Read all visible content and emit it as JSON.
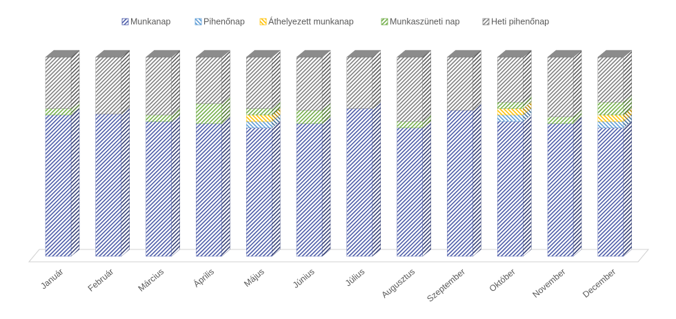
{
  "chart_data": {
    "type": "bar",
    "stacked": "percent",
    "categories": [
      "Január",
      "Február",
      "Március",
      "Április",
      "Május",
      "Június",
      "Július",
      "Augusztus",
      "Szeptember",
      "Október",
      "November",
      "December"
    ],
    "series": [
      {
        "name": "Munkanap",
        "color": "#4a5aa8",
        "values": [
          22,
          20,
          21,
          20,
          20,
          20,
          23,
          20,
          22,
          21,
          20,
          20
        ]
      },
      {
        "name": "Pihenőnap",
        "color": "#5b9bd5",
        "values": [
          0,
          0,
          0,
          0,
          1,
          0,
          0,
          0,
          0,
          1,
          0,
          1
        ]
      },
      {
        "name": "Áthelyezett munkanap",
        "color": "#ffc000",
        "values": [
          0,
          0,
          0,
          0,
          1,
          0,
          0,
          0,
          0,
          1,
          0,
          1
        ]
      },
      {
        "name": "Munkaszüneti nap",
        "color": "#70ad47",
        "values": [
          1,
          0,
          1,
          3,
          1,
          2,
          0,
          1,
          0,
          1,
          1,
          2
        ]
      },
      {
        "name": "Heti pihenőnap",
        "color": "#7f7f7f",
        "values": [
          8,
          8,
          9,
          7,
          8,
          8,
          8,
          10,
          8,
          7,
          9,
          7
        ]
      }
    ],
    "legend": "top"
  }
}
